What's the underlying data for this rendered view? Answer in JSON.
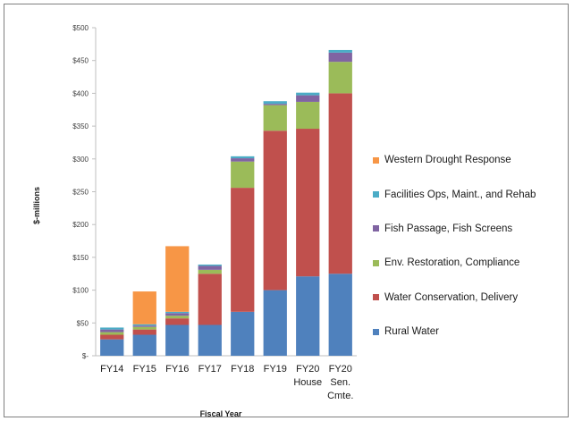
{
  "chart_data": {
    "type": "bar",
    "stacked": true,
    "xlabel": "Fiscal Year",
    "ylabel": "$-millions",
    "ylim": [
      0,
      500
    ],
    "yticks": [
      {
        "value": 0,
        "label": "$-"
      },
      {
        "value": 50,
        "label": "$50"
      },
      {
        "value": 100,
        "label": "$100"
      },
      {
        "value": 150,
        "label": "$150"
      },
      {
        "value": 200,
        "label": "$200"
      },
      {
        "value": 250,
        "label": "$250"
      },
      {
        "value": 300,
        "label": "$300"
      },
      {
        "value": 350,
        "label": "$350"
      },
      {
        "value": 400,
        "label": "$400"
      },
      {
        "value": 450,
        "label": "$450"
      },
      {
        "value": 500,
        "label": "$500"
      }
    ],
    "categories": [
      [
        "FY14"
      ],
      [
        "FY15"
      ],
      [
        "FY16"
      ],
      [
        "FY17"
      ],
      [
        "FY18"
      ],
      [
        "FY19"
      ],
      [
        "FY20",
        "House"
      ],
      [
        "FY20",
        "Sen.",
        "Cmte."
      ]
    ],
    "series": [
      {
        "name": "Rural Water",
        "color": "#4f81bd",
        "values": [
          25,
          32,
          47,
          47,
          67,
          100,
          121,
          125
        ]
      },
      {
        "name": "Water Conservation, Delivery",
        "color": "#c0504d",
        "values": [
          7,
          8,
          10,
          78,
          189,
          243,
          225,
          275
        ]
      },
      {
        "name": "Env. Restoration, Compliance",
        "color": "#9bbb59",
        "values": [
          4,
          4,
          4,
          6,
          40,
          39,
          41,
          48
        ]
      },
      {
        "name": "Fish Passage, Fish Screens",
        "color": "#8064a2",
        "values": [
          4,
          2,
          4,
          6,
          5,
          2,
          10,
          14
        ]
      },
      {
        "name": "Facilities Ops, Maint., and Rehab",
        "color": "#4bacc6",
        "values": [
          3,
          2,
          2,
          2,
          3,
          4,
          4,
          4
        ]
      },
      {
        "name": "Western Drought Response",
        "color": "#f79646",
        "values": [
          0,
          50,
          100,
          0,
          0,
          0,
          0,
          0
        ]
      }
    ],
    "legend_placement": "right",
    "legend_order": [
      5,
      4,
      3,
      2,
      1,
      0
    ],
    "grid": false
  }
}
